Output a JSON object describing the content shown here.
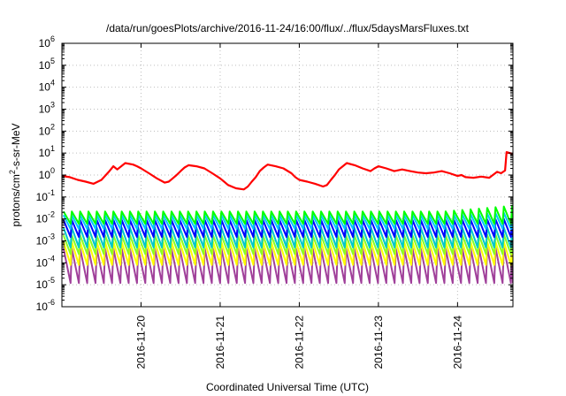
{
  "chart_data": {
    "type": "line",
    "title": "/data/run/goesPlots/archive/2016-11-24/16:00/flux/../flux/5daysMarsFluxes.txt",
    "xlabel": "Coordinated Universal Time (UTC)",
    "ylabel": "protons/cm2-s-sr-MeV",
    "ylabel_main": "protons/cm",
    "ylabel_sup": "2",
    "ylabel_rest": "-s-sr-MeV",
    "xlim": [
      0,
      5.7
    ],
    "x_ticks": [
      {
        "x": 1,
        "label": "2016-11-20"
      },
      {
        "x": 2,
        "label": "2016-11-21"
      },
      {
        "x": 3,
        "label": "2016-11-22"
      },
      {
        "x": 4,
        "label": "2016-11-23"
      },
      {
        "x": 5,
        "label": "2016-11-24"
      }
    ],
    "y_scale": "log",
    "ylim_log10": [
      -6,
      6
    ],
    "y_ticks": [
      {
        "exp": -6,
        "base": "10",
        "sup": "-6"
      },
      {
        "exp": -5,
        "base": "10",
        "sup": "-5"
      },
      {
        "exp": -4,
        "base": "10",
        "sup": "-4"
      },
      {
        "exp": -3,
        "base": "10",
        "sup": "-3"
      },
      {
        "exp": -2,
        "base": "10",
        "sup": "-2"
      },
      {
        "exp": -1,
        "base": "10",
        "sup": "-1"
      },
      {
        "exp": 0,
        "base": "10",
        "sup": "0"
      },
      {
        "exp": 1,
        "base": "10",
        "sup": "1"
      },
      {
        "exp": 2,
        "base": "10",
        "sup": "2"
      },
      {
        "exp": 3,
        "base": "10",
        "sup": "3"
      },
      {
        "exp": 4,
        "base": "10",
        "sup": "4"
      },
      {
        "exp": 5,
        "base": "10",
        "sup": "5"
      },
      {
        "exp": 6,
        "base": "10",
        "sup": "6"
      }
    ],
    "grid": true,
    "legend": "none",
    "sawtooth_period_days": 0.105,
    "series": [
      {
        "color": "#ff0000",
        "kind": "smooth",
        "stroke": 2.2,
        "x": [
          0.0,
          0.1,
          0.2,
          0.3,
          0.4,
          0.5,
          0.6,
          0.65,
          0.7,
          0.8,
          0.9,
          0.95,
          1.0,
          1.1,
          1.2,
          1.3,
          1.35,
          1.4,
          1.45,
          1.5,
          1.55,
          1.6,
          1.7,
          1.8,
          1.9,
          2.0,
          2.05,
          2.1,
          2.2,
          2.3,
          2.35,
          2.4,
          2.45,
          2.5,
          2.55,
          2.6,
          2.7,
          2.8,
          2.9,
          2.95,
          3.0,
          3.1,
          3.2,
          3.3,
          3.35,
          3.4,
          3.45,
          3.5,
          3.55,
          3.6,
          3.7,
          3.8,
          3.9,
          3.95,
          4.0,
          4.1,
          4.2,
          4.3,
          4.4,
          4.5,
          4.6,
          4.7,
          4.8,
          4.9,
          5.0,
          5.05,
          5.1,
          5.2,
          5.3,
          5.4,
          5.5,
          5.55,
          5.6,
          5.62,
          5.7
        ],
        "y": [
          0.9,
          0.8,
          0.6,
          0.5,
          0.4,
          0.6,
          1.5,
          2.5,
          1.8,
          3.5,
          3.0,
          2.5,
          2.0,
          1.2,
          0.7,
          0.45,
          0.5,
          0.7,
          1.0,
          1.5,
          2.2,
          2.8,
          2.5,
          2.0,
          1.2,
          0.7,
          0.5,
          0.35,
          0.25,
          0.22,
          0.3,
          0.5,
          0.8,
          1.5,
          2.2,
          3.0,
          2.5,
          2.0,
          1.2,
          0.8,
          0.6,
          0.5,
          0.4,
          0.3,
          0.35,
          0.6,
          1.0,
          1.8,
          2.5,
          3.5,
          2.8,
          2.0,
          1.5,
          2.0,
          2.5,
          2.0,
          1.5,
          1.8,
          1.5,
          1.3,
          1.2,
          1.3,
          1.5,
          1.2,
          0.9,
          1.0,
          0.8,
          0.75,
          0.85,
          0.75,
          1.4,
          1.2,
          1.6,
          11,
          9
        ]
      },
      {
        "color": "#00ff00",
        "kind": "sawtooth",
        "stroke": 2,
        "low": 0.006,
        "high": 0.022,
        "end_high": 0.04
      },
      {
        "color": "#00c8ff",
        "kind": "sawtooth",
        "stroke": 2,
        "low": 0.0035,
        "high": 0.015,
        "end_high": 0.02
      },
      {
        "color": "#0000ff",
        "kind": "sawtooth",
        "stroke": 2,
        "low": 0.0015,
        "high": 0.009,
        "end_high": 0.01
      },
      {
        "color": "#00c8c8",
        "kind": "sawtooth",
        "stroke": 2,
        "low": 0.0005,
        "high": 0.004,
        "end_high": 0.004
      },
      {
        "color": "#88ff22",
        "kind": "sawtooth",
        "stroke": 2,
        "low": 0.00025,
        "high": 0.0018,
        "end_high": 0.002
      },
      {
        "color": "#ffff00",
        "kind": "sawtooth",
        "stroke": 2,
        "low": 8e-05,
        "high": 0.0009,
        "end_high": 0.0009
      },
      {
        "color": "#a0409a",
        "kind": "sawtooth",
        "stroke": 2,
        "low": 1.2e-05,
        "high": 0.00045,
        "end_high": 0.0005
      }
    ]
  }
}
